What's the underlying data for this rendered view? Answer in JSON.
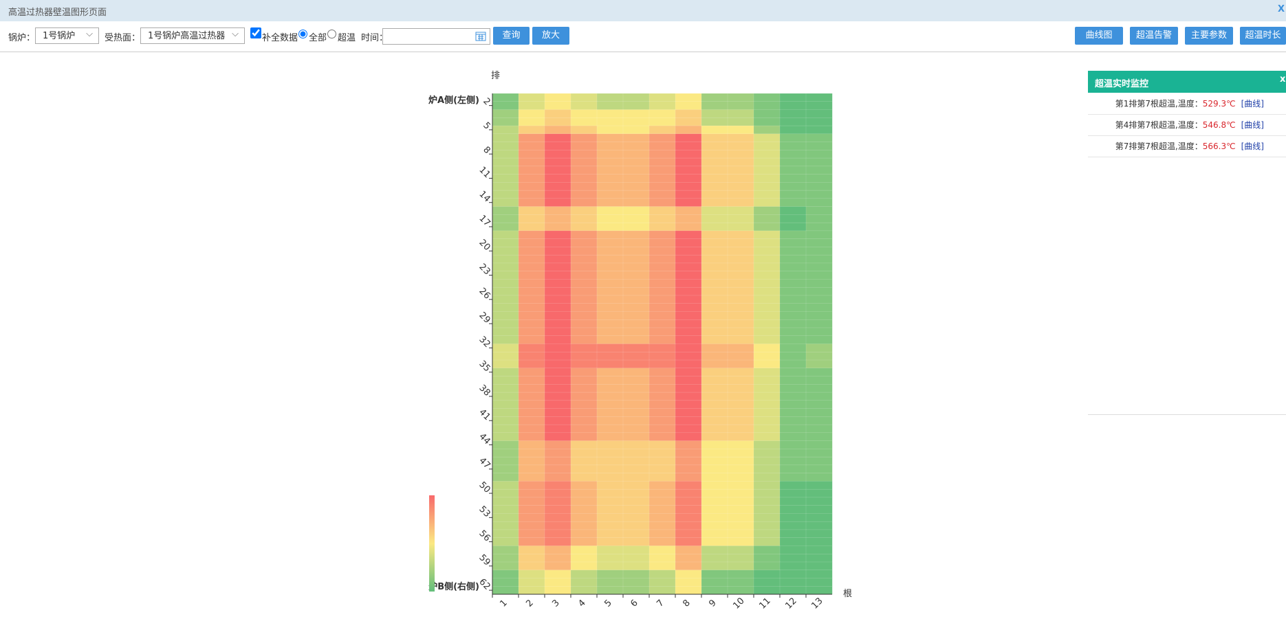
{
  "header": {
    "title": "高温过热器壁温图形页面",
    "close": "X"
  },
  "toolbar": {
    "boiler_label": "锅炉：",
    "boiler_value": "1号锅炉",
    "surface_label": "受热面：",
    "surface_value": "1号锅炉高温过热器",
    "fill_data": "补全数据",
    "radio_all": "全部",
    "radio_over": "超温",
    "time_label": "时间：",
    "buttons": [
      "查询",
      "放大"
    ],
    "right_buttons": [
      "曲线图",
      "超温告警",
      "主要参数",
      "超温时长"
    ]
  },
  "chart_data": {
    "type": "heatmap",
    "y_axis_name": "排",
    "x_axis_name": "根",
    "annotations": [
      "炉A侧(左侧)",
      "炉B侧(右侧)"
    ],
    "categories": [
      1,
      2,
      3,
      4,
      5,
      6,
      7,
      8,
      9,
      10,
      11,
      12,
      13
    ],
    "y_categories": [
      null,
      2,
      null,
      null,
      5,
      null,
      null,
      8,
      null,
      null,
      11,
      null,
      null,
      14,
      null,
      null,
      17,
      null,
      null,
      20,
      null,
      null,
      23,
      null,
      null,
      26,
      null,
      null,
      29,
      null,
      null,
      32,
      null,
      null,
      35,
      null,
      null,
      38,
      null,
      null,
      41,
      null,
      null,
      44,
      null,
      null,
      47,
      null,
      null,
      50,
      null,
      null,
      53,
      null,
      null,
      56,
      null,
      null,
      59,
      null,
      null,
      62
    ],
    "colors": [
      "#63be7b",
      "#fbe983",
      "#f8696b"
    ],
    "vlim": [
      0,
      10
    ],
    "values": [
      [
        1,
        4,
        5,
        4,
        3,
        3,
        4,
        5,
        2,
        2,
        1,
        0,
        0
      ],
      [
        1,
        4,
        5,
        4,
        3,
        3,
        4,
        5,
        2,
        2,
        1,
        0,
        0
      ],
      [
        2,
        5,
        6,
        5,
        5,
        5,
        5,
        6,
        3,
        3,
        1,
        0,
        0
      ],
      [
        2,
        5,
        6,
        5,
        5,
        5,
        5,
        6,
        3,
        3,
        1,
        0,
        0
      ],
      [
        3,
        6,
        7,
        6,
        5,
        5,
        6,
        7,
        5,
        5,
        2,
        0,
        0
      ],
      [
        3,
        8,
        10,
        8,
        7,
        7,
        8,
        10,
        6,
        6,
        4,
        1,
        1
      ],
      [
        3,
        8,
        10,
        8,
        7,
        7,
        8,
        10,
        6,
        6,
        4,
        1,
        1
      ],
      [
        3,
        8,
        10,
        8,
        7,
        7,
        8,
        10,
        6,
        6,
        4,
        1,
        1
      ],
      [
        3,
        8,
        10,
        8,
        7,
        7,
        8,
        10,
        6,
        6,
        4,
        1,
        1
      ],
      [
        3,
        8,
        10,
        8,
        7,
        7,
        8,
        10,
        6,
        6,
        4,
        1,
        1
      ],
      [
        3,
        8,
        10,
        8,
        7,
        7,
        8,
        10,
        6,
        6,
        4,
        1,
        1
      ],
      [
        3,
        8,
        10,
        8,
        7,
        7,
        8,
        10,
        6,
        6,
        4,
        1,
        1
      ],
      [
        3,
        8,
        10,
        8,
        7,
        7,
        8,
        10,
        6,
        6,
        4,
        1,
        1
      ],
      [
        3,
        8,
        10,
        8,
        7,
        7,
        8,
        10,
        6,
        6,
        4,
        1,
        1
      ],
      [
        2,
        6,
        7,
        6,
        5,
        5,
        6,
        7,
        4,
        4,
        2,
        0,
        1
      ],
      [
        2,
        6,
        7,
        6,
        5,
        5,
        6,
        7,
        4,
        4,
        2,
        0,
        1
      ],
      [
        2,
        6,
        7,
        6,
        5,
        5,
        6,
        7,
        4,
        4,
        2,
        0,
        1
      ],
      [
        3,
        8,
        10,
        8,
        7,
        7,
        8,
        10,
        6,
        6,
        4,
        1,
        1
      ],
      [
        3,
        8,
        10,
        8,
        7,
        7,
        8,
        10,
        6,
        6,
        4,
        1,
        1
      ],
      [
        3,
        8,
        10,
        8,
        7,
        7,
        8,
        10,
        6,
        6,
        4,
        1,
        1
      ],
      [
        3,
        8,
        10,
        8,
        7,
        7,
        8,
        10,
        6,
        6,
        4,
        1,
        1
      ],
      [
        3,
        8,
        10,
        8,
        7,
        7,
        8,
        10,
        6,
        6,
        4,
        1,
        1
      ],
      [
        3,
        8,
        10,
        8,
        7,
        7,
        8,
        10,
        6,
        6,
        4,
        1,
        1
      ],
      [
        3,
        8,
        10,
        8,
        7,
        7,
        8,
        10,
        6,
        6,
        4,
        1,
        1
      ],
      [
        3,
        8,
        10,
        8,
        7,
        7,
        8,
        10,
        6,
        6,
        4,
        1,
        1
      ],
      [
        3,
        8,
        10,
        8,
        7,
        7,
        8,
        10,
        6,
        6,
        4,
        1,
        1
      ],
      [
        3,
        8,
        10,
        8,
        7,
        7,
        8,
        10,
        6,
        6,
        4,
        1,
        1
      ],
      [
        3,
        8,
        10,
        8,
        7,
        7,
        8,
        10,
        6,
        6,
        4,
        1,
        1
      ],
      [
        3,
        8,
        10,
        8,
        7,
        7,
        8,
        10,
        6,
        6,
        4,
        1,
        1
      ],
      [
        3,
        8,
        10,
        8,
        7,
        7,
        8,
        10,
        6,
        6,
        4,
        1,
        1
      ],
      [
        3,
        8,
        10,
        8,
        7,
        7,
        8,
        10,
        6,
        6,
        4,
        1,
        1
      ],
      [
        4,
        9,
        10,
        9,
        9,
        9,
        9,
        10,
        7,
        7,
        5,
        1,
        2
      ],
      [
        4,
        9,
        10,
        9,
        9,
        9,
        9,
        10,
        7,
        7,
        5,
        1,
        2
      ],
      [
        4,
        9,
        10,
        9,
        9,
        9,
        9,
        10,
        7,
        7,
        5,
        1,
        2
      ],
      [
        3,
        8,
        10,
        8,
        7,
        7,
        8,
        10,
        6,
        6,
        4,
        1,
        1
      ],
      [
        3,
        8,
        10,
        8,
        7,
        7,
        8,
        10,
        6,
        6,
        4,
        1,
        1
      ],
      [
        3,
        8,
        10,
        8,
        7,
        7,
        8,
        10,
        6,
        6,
        4,
        1,
        1
      ],
      [
        3,
        8,
        10,
        8,
        7,
        7,
        8,
        10,
        6,
        6,
        4,
        1,
        1
      ],
      [
        3,
        8,
        10,
        8,
        7,
        7,
        8,
        10,
        6,
        6,
        4,
        1,
        1
      ],
      [
        3,
        8,
        10,
        8,
        7,
        7,
        8,
        10,
        6,
        6,
        4,
        1,
        1
      ],
      [
        3,
        8,
        10,
        8,
        7,
        7,
        8,
        10,
        6,
        6,
        4,
        1,
        1
      ],
      [
        3,
        8,
        10,
        8,
        7,
        7,
        8,
        10,
        6,
        6,
        4,
        1,
        1
      ],
      [
        3,
        8,
        10,
        8,
        7,
        7,
        8,
        10,
        6,
        6,
        4,
        1,
        1
      ],
      [
        2,
        7,
        8,
        6,
        6,
        6,
        6,
        8,
        5,
        5,
        3,
        1,
        1
      ],
      [
        2,
        7,
        8,
        6,
        6,
        6,
        6,
        8,
        5,
        5,
        3,
        1,
        1
      ],
      [
        2,
        7,
        8,
        6,
        6,
        6,
        6,
        8,
        5,
        5,
        3,
        1,
        1
      ],
      [
        2,
        7,
        8,
        6,
        6,
        6,
        6,
        8,
        5,
        5,
        3,
        1,
        1
      ],
      [
        2,
        7,
        8,
        6,
        6,
        6,
        6,
        8,
        5,
        5,
        3,
        1,
        1
      ],
      [
        3,
        8,
        9,
        7,
        6,
        6,
        7,
        9,
        5,
        5,
        3,
        0,
        0
      ],
      [
        3,
        8,
        9,
        7,
        6,
        6,
        7,
        9,
        5,
        5,
        3,
        0,
        0
      ],
      [
        3,
        8,
        9,
        7,
        6,
        6,
        7,
        9,
        5,
        5,
        3,
        0,
        0
      ],
      [
        3,
        8,
        9,
        7,
        6,
        6,
        7,
        9,
        5,
        5,
        3,
        0,
        0
      ],
      [
        3,
        8,
        9,
        7,
        6,
        6,
        7,
        9,
        5,
        5,
        3,
        0,
        0
      ],
      [
        3,
        8,
        9,
        7,
        6,
        6,
        7,
        9,
        5,
        5,
        3,
        0,
        0
      ],
      [
        3,
        8,
        9,
        7,
        6,
        6,
        7,
        9,
        5,
        5,
        3,
        0,
        0
      ],
      [
        3,
        8,
        9,
        7,
        6,
        6,
        7,
        9,
        5,
        5,
        3,
        0,
        0
      ],
      [
        2,
        6,
        7,
        5,
        4,
        4,
        5,
        7,
        3,
        3,
        1,
        0,
        0
      ],
      [
        2,
        6,
        7,
        5,
        4,
        4,
        5,
        7,
        3,
        3,
        1,
        0,
        0
      ],
      [
        2,
        6,
        7,
        5,
        4,
        4,
        5,
        7,
        3,
        3,
        1,
        0,
        0
      ],
      [
        1,
        4,
        5,
        3,
        2,
        2,
        3,
        5,
        1,
        1,
        0,
        0,
        0
      ],
      [
        1,
        4,
        5,
        3,
        2,
        2,
        3,
        5,
        1,
        1,
        0,
        0,
        0
      ],
      [
        1,
        4,
        5,
        3,
        2,
        2,
        3,
        5,
        1,
        1,
        0,
        0,
        0
      ]
    ]
  },
  "monitor": {
    "title": "超温实时监控",
    "close": "x",
    "alerts": [
      {
        "text": "第1排第7根超温,温度：",
        "temp": "529.3℃",
        "link": "[曲线]"
      },
      {
        "text": "第4排第7根超温,温度：",
        "temp": "546.8℃",
        "link": "[曲线]"
      },
      {
        "text": "第7排第7根超温,温度：",
        "temp": "566.3℃",
        "link": "[曲线]"
      }
    ]
  }
}
